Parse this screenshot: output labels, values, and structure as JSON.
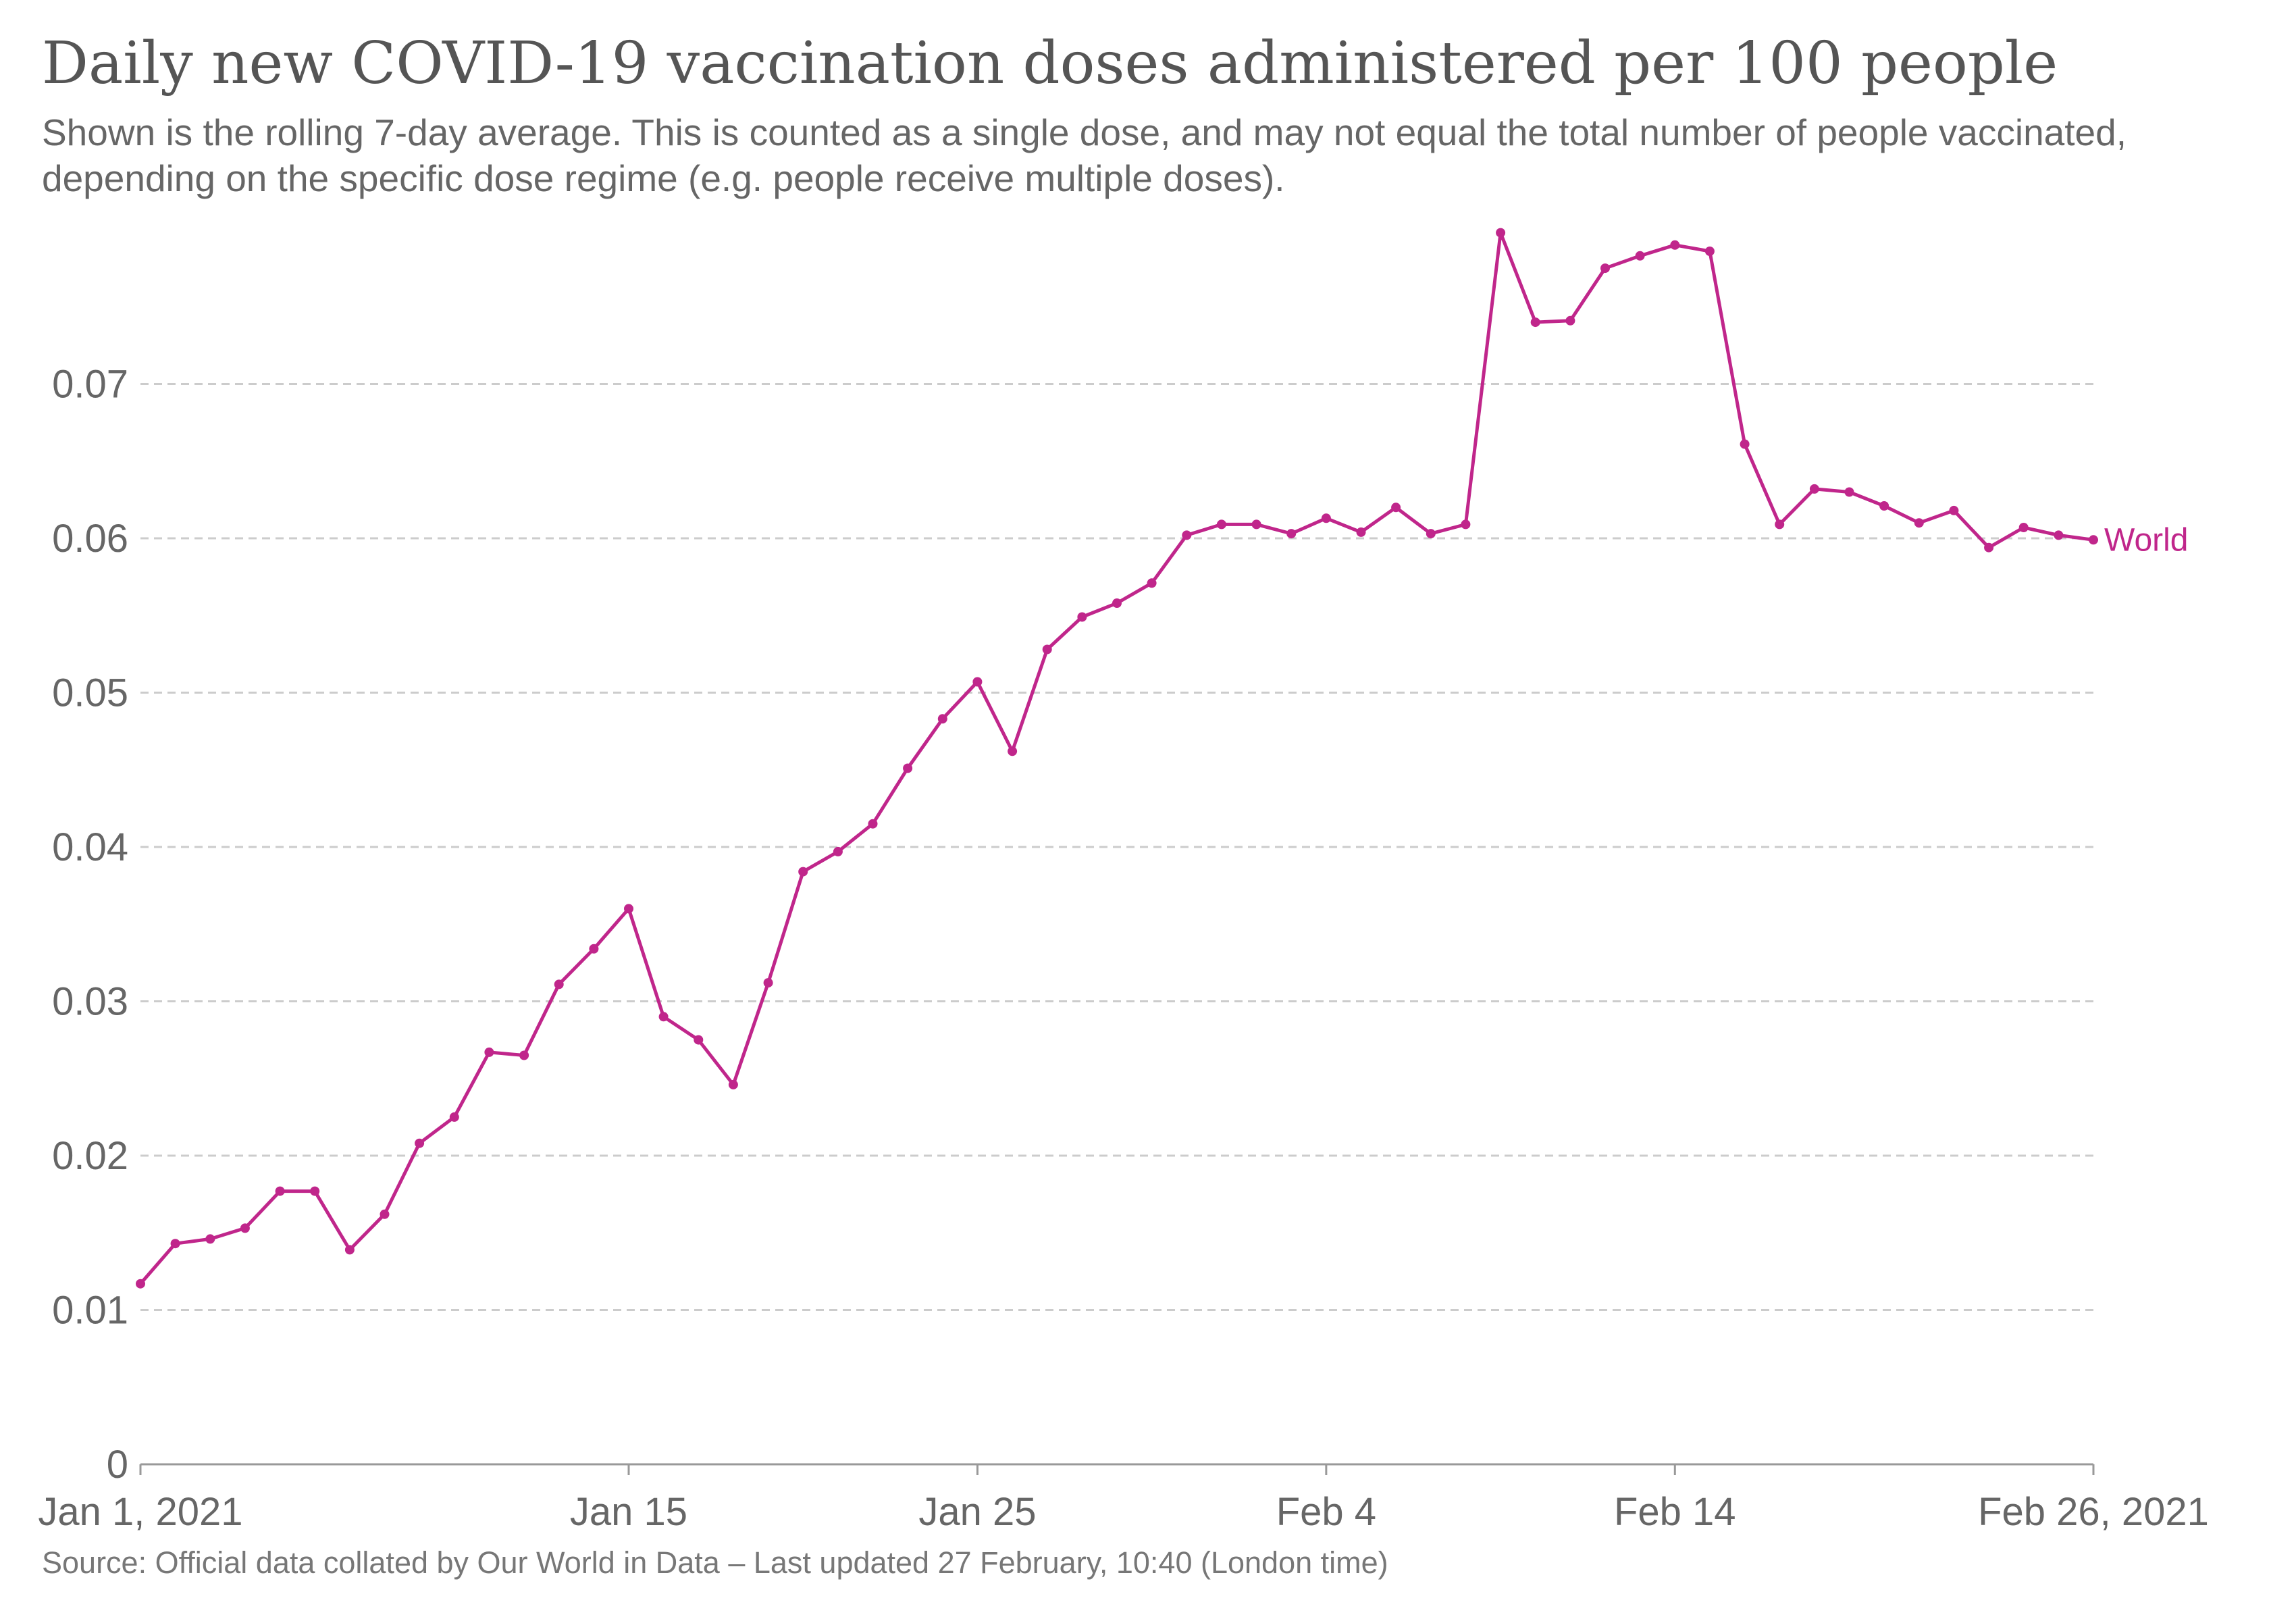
{
  "chart_data": {
    "type": "line",
    "title": "Daily new COVID-19 vaccination doses administered per 100 people",
    "subtitle": "Shown is the rolling 7-day average. This is counted as a single dose, and may not equal the total number of people vaccinated, depending on the specific dose regime (e.g. people receive multiple doses).",
    "source": "Source: Official data collated by Our World in Data – Last updated 27 February, 10:40 (London time)",
    "xlabel": "",
    "ylabel": "",
    "x_range": [
      "2021-01-01",
      "2021-02-26"
    ],
    "ylim": [
      0,
      0.08
    ],
    "y_ticks": [
      {
        "value": 0,
        "label": "0"
      },
      {
        "value": 0.01,
        "label": "0.01"
      },
      {
        "value": 0.02,
        "label": "0.02"
      },
      {
        "value": 0.03,
        "label": "0.03"
      },
      {
        "value": 0.04,
        "label": "0.04"
      },
      {
        "value": 0.05,
        "label": "0.05"
      },
      {
        "value": 0.06,
        "label": "0.06"
      },
      {
        "value": 0.07,
        "label": "0.07"
      }
    ],
    "x_ticks": [
      {
        "date": "2021-01-01",
        "label": "Jan 1, 2021"
      },
      {
        "date": "2021-01-15",
        "label": "Jan 15"
      },
      {
        "date": "2021-01-25",
        "label": "Jan 25"
      },
      {
        "date": "2021-02-04",
        "label": "Feb 4"
      },
      {
        "date": "2021-02-14",
        "label": "Feb 14"
      },
      {
        "date": "2021-02-26",
        "label": "Feb 26, 2021"
      }
    ],
    "grid": "horizontal-dashed",
    "legend": "end-of-line label",
    "series": [
      {
        "name": "World",
        "color": "#c0268b",
        "x": [
          "2021-01-01",
          "2021-01-02",
          "2021-01-03",
          "2021-01-04",
          "2021-01-05",
          "2021-01-06",
          "2021-01-07",
          "2021-01-08",
          "2021-01-09",
          "2021-01-10",
          "2021-01-11",
          "2021-01-12",
          "2021-01-13",
          "2021-01-14",
          "2021-01-15",
          "2021-01-16",
          "2021-01-17",
          "2021-01-18",
          "2021-01-19",
          "2021-01-20",
          "2021-01-21",
          "2021-01-22",
          "2021-01-23",
          "2021-01-24",
          "2021-01-25",
          "2021-01-26",
          "2021-01-27",
          "2021-01-28",
          "2021-01-29",
          "2021-01-30",
          "2021-01-31",
          "2021-02-01",
          "2021-02-02",
          "2021-02-03",
          "2021-02-04",
          "2021-02-05",
          "2021-02-06",
          "2021-02-07",
          "2021-02-08",
          "2021-02-09",
          "2021-02-10",
          "2021-02-11",
          "2021-02-12",
          "2021-02-13",
          "2021-02-14",
          "2021-02-15",
          "2021-02-16",
          "2021-02-17",
          "2021-02-18",
          "2021-02-19",
          "2021-02-20",
          "2021-02-21",
          "2021-02-22",
          "2021-02-23",
          "2021-02-24",
          "2021-02-25",
          "2021-02-26"
        ],
        "y": [
          0.0117,
          0.0143,
          0.0146,
          0.0153,
          0.0177,
          0.0177,
          0.0139,
          0.0162,
          0.0208,
          0.0225,
          0.0267,
          0.0265,
          0.0311,
          0.0334,
          0.036,
          0.029,
          0.0275,
          0.0246,
          0.0312,
          0.0384,
          0.0397,
          0.0415,
          0.0451,
          0.0483,
          0.0507,
          0.0462,
          0.0528,
          0.0549,
          0.0558,
          0.0571,
          0.0602,
          0.0609,
          0.0609,
          0.0603,
          0.0613,
          0.0604,
          0.062,
          0.0603,
          0.0609,
          0.0798,
          0.074,
          0.0741,
          0.0775,
          0.0783,
          0.079,
          0.0786,
          0.0661,
          0.0609,
          0.0632,
          0.063,
          0.0621,
          0.061,
          0.0618,
          0.0594,
          0.0607,
          0.0602,
          0.0599
        ]
      }
    ]
  }
}
